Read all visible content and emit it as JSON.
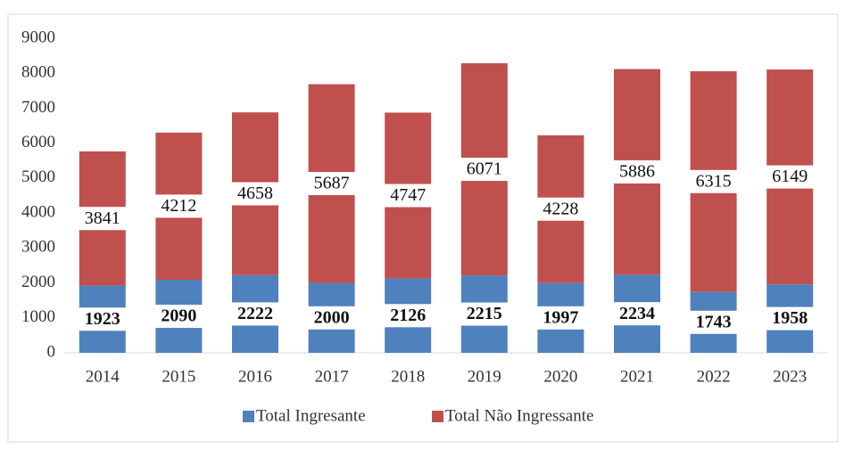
{
  "chart_data": {
    "type": "stacked_bar",
    "categories": [
      "2014",
      "2015",
      "2016",
      "2017",
      "2018",
      "2019",
      "2020",
      "2021",
      "2022",
      "2023"
    ],
    "series": [
      {
        "name": "Total Ingresante",
        "color": "#4f81bd",
        "values": [
          1923,
          2090,
          2222,
          2000,
          2126,
          2215,
          1997,
          2234,
          1743,
          1958
        ]
      },
      {
        "name": "Total Não Ingressante",
        "color": "#c0504d",
        "values": [
          3841,
          4212,
          4658,
          5687,
          4747,
          6071,
          4228,
          5886,
          6315,
          6149
        ]
      }
    ],
    "ylim": [
      0,
      9000
    ],
    "yticks": [
      0,
      1000,
      2000,
      3000,
      4000,
      5000,
      6000,
      7000,
      8000,
      9000
    ],
    "legend": "bottom"
  }
}
